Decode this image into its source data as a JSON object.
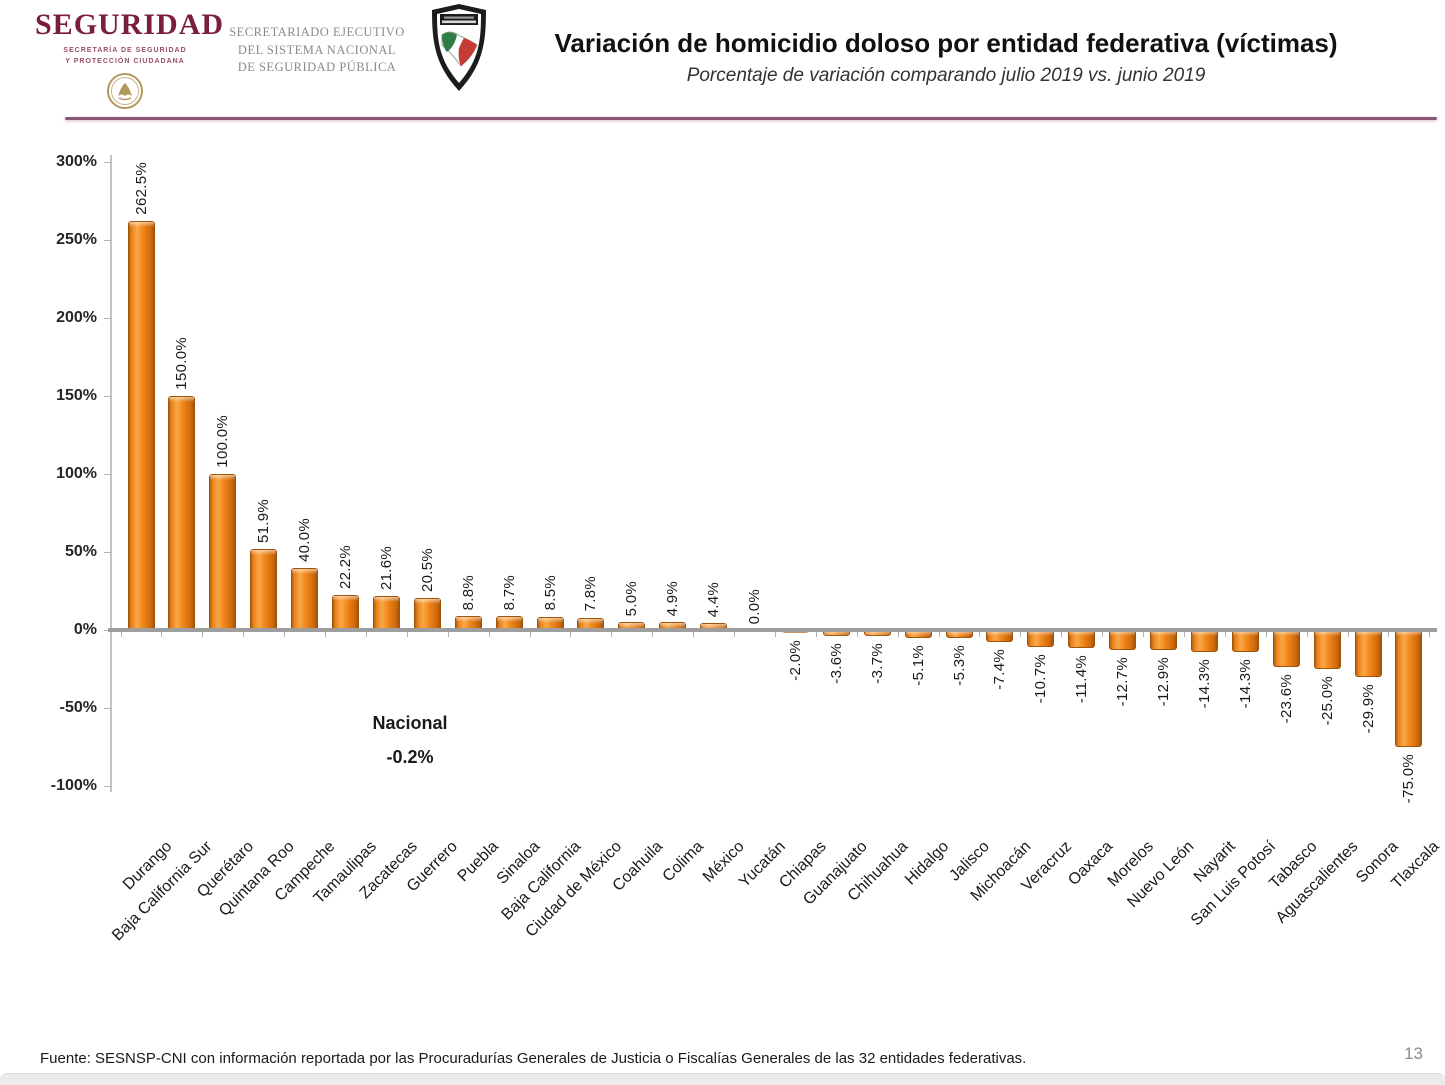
{
  "header": {
    "brand": {
      "name": "SEGURIDAD",
      "sub_line1": "SECRETARÍA DE SEGURIDAD",
      "sub_line2": "Y PROTECCIÓN CIUDADANA"
    },
    "secretariat_lines": [
      "SECRETARIADO EJECUTIVO",
      "DEL SISTEMA NACIONAL",
      "DE SEGURIDAD PÚBLICA"
    ],
    "title": "Variación de homicidio doloso por entidad federativa (víctimas)",
    "subtitle": "Porcentaje de variación comparando julio 2019 vs. junio 2019"
  },
  "chart_data": {
    "type": "bar",
    "title": "Variación de homicidio doloso por entidad federativa (víctimas)",
    "subtitle": "Porcentaje de variación comparando julio 2019 vs. junio 2019",
    "xlabel": "",
    "ylabel": "",
    "ylim": [
      -100,
      300
    ],
    "grid": false,
    "legend_position": "none",
    "bar_color": "#ED7D31",
    "categories": [
      "Durango",
      "Baja California Sur",
      "Querétaro",
      "Quintana Roo",
      "Campeche",
      "Tamaulipas",
      "Zacatecas",
      "Guerrero",
      "Puebla",
      "Sinaloa",
      "Baja California",
      "Ciudad de México",
      "Coahuila",
      "Colima",
      "México",
      "Yucatán",
      "Chiapas",
      "Guanajuato",
      "Chihuahua",
      "Hidalgo",
      "Jalisco",
      "Michoacán",
      "Veracruz",
      "Oaxaca",
      "Morelos",
      "Nuevo León",
      "Nayarit",
      "San Luis Potosí",
      "Tabasco",
      "Aguascalientes",
      "Sonora",
      "Tlaxcala"
    ],
    "values": [
      262.5,
      150.0,
      100.0,
      51.9,
      40.0,
      22.2,
      21.6,
      20.5,
      8.8,
      8.7,
      8.5,
      7.8,
      5.0,
      4.9,
      4.4,
      0.0,
      -2.0,
      -3.6,
      -3.7,
      -5.1,
      -5.3,
      -7.4,
      -10.7,
      -11.4,
      -12.7,
      -12.9,
      -14.3,
      -14.3,
      -23.6,
      -25.0,
      -29.9,
      -75.0
    ],
    "value_labels": [
      "262.5%",
      "150.0%",
      "100.0%",
      "51.9%",
      "40.0%",
      "22.2%",
      "21.6%",
      "20.5%",
      "8.8%",
      "8.7%",
      "8.5%",
      "7.8%",
      "5.0%",
      "4.9%",
      "4.4%",
      "0.0%",
      "-2.0%",
      "-3.6%",
      "-3.7%",
      "-5.1%",
      "-5.3%",
      "-7.4%",
      "-10.7%",
      "-11.4%",
      "-12.7%",
      "-12.9%",
      "-14.3%",
      "-14.3%",
      "-23.6%",
      "-25.0%",
      "-29.9%",
      "-75.0%"
    ],
    "ytick_labels": [
      "300%",
      "250%",
      "200%",
      "150%",
      "100%",
      "50%",
      "0%",
      "-50%",
      "-100%"
    ],
    "ytick_values": [
      300,
      250,
      200,
      150,
      100,
      50,
      0,
      -50,
      -100
    ],
    "national_annotation": {
      "label": "Nacional",
      "value": "-0.2%"
    }
  },
  "footer": {
    "source": "Fuente: SESNSP-CNI con información reportada por las Procuradurías Generales de Justicia o Fiscalías Generales de las 32 entidades federativas.",
    "page": "13"
  }
}
